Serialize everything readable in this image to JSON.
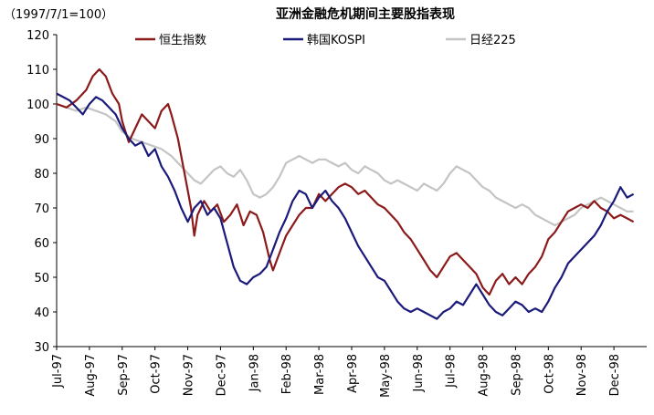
{
  "chart_data": {
    "type": "line",
    "title": "亚洲金融危机期间主要股指表现",
    "base_note": "（1997/7/1=100）",
    "xlabel": "",
    "ylabel": "",
    "ylim": [
      30,
      120
    ],
    "yticks": [
      30,
      40,
      50,
      60,
      70,
      80,
      90,
      100,
      110,
      120
    ],
    "xlim": [
      0,
      18
    ],
    "x_tick_labels": [
      "Jul-97",
      "Aug-97",
      "Sep-97",
      "Oct-97",
      "Nov-97",
      "Dec-97",
      "Jan-98",
      "Feb-98",
      "Mar-98",
      "Apr-98",
      "May-98",
      "Jun-98",
      "Jul-98",
      "Aug-98",
      "Sep-98",
      "Oct-98",
      "Nov-98",
      "Dec-98"
    ],
    "grid": false,
    "legend_position": "top",
    "series": [
      {
        "name": "恒生指数",
        "color": "#8b1a1a",
        "points": [
          [
            0,
            100
          ],
          [
            0.3,
            99
          ],
          [
            0.6,
            101
          ],
          [
            0.9,
            104
          ],
          [
            1.1,
            108
          ],
          [
            1.3,
            110
          ],
          [
            1.5,
            108
          ],
          [
            1.7,
            103
          ],
          [
            1.9,
            100
          ],
          [
            2.0,
            95
          ],
          [
            2.2,
            89
          ],
          [
            2.4,
            93
          ],
          [
            2.6,
            97
          ],
          [
            2.8,
            95
          ],
          [
            3.0,
            93
          ],
          [
            3.2,
            98
          ],
          [
            3.4,
            100
          ],
          [
            3.5,
            97
          ],
          [
            3.7,
            90
          ],
          [
            3.8,
            85
          ],
          [
            4.0,
            75
          ],
          [
            4.1,
            70
          ],
          [
            4.2,
            62
          ],
          [
            4.3,
            68
          ],
          [
            4.5,
            72
          ],
          [
            4.7,
            69
          ],
          [
            4.9,
            71
          ],
          [
            5.1,
            66
          ],
          [
            5.3,
            68
          ],
          [
            5.5,
            71
          ],
          [
            5.7,
            65
          ],
          [
            5.9,
            69
          ],
          [
            6.1,
            68
          ],
          [
            6.3,
            63
          ],
          [
            6.5,
            55
          ],
          [
            6.6,
            52
          ],
          [
            6.8,
            57
          ],
          [
            7.0,
            62
          ],
          [
            7.2,
            65
          ],
          [
            7.4,
            68
          ],
          [
            7.6,
            70
          ],
          [
            7.8,
            70
          ],
          [
            8.0,
            74
          ],
          [
            8.2,
            72
          ],
          [
            8.4,
            74
          ],
          [
            8.6,
            76
          ],
          [
            8.8,
            77
          ],
          [
            9.0,
            76
          ],
          [
            9.2,
            74
          ],
          [
            9.4,
            75
          ],
          [
            9.6,
            73
          ],
          [
            9.8,
            71
          ],
          [
            10.0,
            70
          ],
          [
            10.2,
            68
          ],
          [
            10.4,
            66
          ],
          [
            10.6,
            63
          ],
          [
            10.8,
            61
          ],
          [
            11.0,
            58
          ],
          [
            11.2,
            55
          ],
          [
            11.4,
            52
          ],
          [
            11.6,
            50
          ],
          [
            11.8,
            53
          ],
          [
            12.0,
            56
          ],
          [
            12.2,
            57
          ],
          [
            12.4,
            55
          ],
          [
            12.6,
            53
          ],
          [
            12.8,
            51
          ],
          [
            13.0,
            47
          ],
          [
            13.2,
            45
          ],
          [
            13.4,
            49
          ],
          [
            13.6,
            51
          ],
          [
            13.8,
            48
          ],
          [
            14.0,
            50
          ],
          [
            14.2,
            48
          ],
          [
            14.4,
            51
          ],
          [
            14.6,
            53
          ],
          [
            14.8,
            56
          ],
          [
            15.0,
            61
          ],
          [
            15.2,
            63
          ],
          [
            15.4,
            66
          ],
          [
            15.6,
            69
          ],
          [
            15.8,
            70
          ],
          [
            16.0,
            71
          ],
          [
            16.2,
            70
          ],
          [
            16.4,
            72
          ],
          [
            16.6,
            70
          ],
          [
            16.8,
            69
          ],
          [
            17.0,
            67
          ],
          [
            17.2,
            68
          ],
          [
            17.4,
            67
          ],
          [
            17.6,
            66
          ]
        ]
      },
      {
        "name": "韩国KOSPI",
        "color": "#1a1a7a",
        "points": [
          [
            0,
            103
          ],
          [
            0.2,
            102
          ],
          [
            0.4,
            101
          ],
          [
            0.6,
            99
          ],
          [
            0.8,
            97
          ],
          [
            1.0,
            100
          ],
          [
            1.2,
            102
          ],
          [
            1.4,
            101
          ],
          [
            1.6,
            99
          ],
          [
            1.8,
            97
          ],
          [
            2.0,
            93
          ],
          [
            2.2,
            90
          ],
          [
            2.4,
            88
          ],
          [
            2.6,
            89
          ],
          [
            2.8,
            85
          ],
          [
            3.0,
            87
          ],
          [
            3.2,
            82
          ],
          [
            3.4,
            79
          ],
          [
            3.6,
            75
          ],
          [
            3.8,
            70
          ],
          [
            4.0,
            66
          ],
          [
            4.2,
            70
          ],
          [
            4.4,
            72
          ],
          [
            4.6,
            68
          ],
          [
            4.8,
            70
          ],
          [
            5.0,
            67
          ],
          [
            5.2,
            60
          ],
          [
            5.4,
            53
          ],
          [
            5.6,
            49
          ],
          [
            5.8,
            48
          ],
          [
            6.0,
            50
          ],
          [
            6.2,
            51
          ],
          [
            6.4,
            53
          ],
          [
            6.6,
            58
          ],
          [
            6.8,
            63
          ],
          [
            7.0,
            67
          ],
          [
            7.2,
            72
          ],
          [
            7.4,
            75
          ],
          [
            7.6,
            74
          ],
          [
            7.8,
            70
          ],
          [
            8.0,
            73
          ],
          [
            8.2,
            75
          ],
          [
            8.4,
            72
          ],
          [
            8.6,
            70
          ],
          [
            8.8,
            67
          ],
          [
            9.0,
            63
          ],
          [
            9.2,
            59
          ],
          [
            9.4,
            56
          ],
          [
            9.6,
            53
          ],
          [
            9.8,
            50
          ],
          [
            10.0,
            49
          ],
          [
            10.2,
            46
          ],
          [
            10.4,
            43
          ],
          [
            10.6,
            41
          ],
          [
            10.8,
            40
          ],
          [
            11.0,
            41
          ],
          [
            11.2,
            40
          ],
          [
            11.4,
            39
          ],
          [
            11.6,
            38
          ],
          [
            11.8,
            40
          ],
          [
            12.0,
            41
          ],
          [
            12.2,
            43
          ],
          [
            12.4,
            42
          ],
          [
            12.6,
            45
          ],
          [
            12.8,
            48
          ],
          [
            13.0,
            45
          ],
          [
            13.2,
            42
          ],
          [
            13.4,
            40
          ],
          [
            13.6,
            39
          ],
          [
            13.8,
            41
          ],
          [
            14.0,
            43
          ],
          [
            14.2,
            42
          ],
          [
            14.4,
            40
          ],
          [
            14.6,
            41
          ],
          [
            14.8,
            40
          ],
          [
            15.0,
            43
          ],
          [
            15.2,
            47
          ],
          [
            15.4,
            50
          ],
          [
            15.6,
            54
          ],
          [
            15.8,
            56
          ],
          [
            16.0,
            58
          ],
          [
            16.2,
            60
          ],
          [
            16.4,
            62
          ],
          [
            16.6,
            65
          ],
          [
            16.8,
            69
          ],
          [
            17.0,
            72
          ],
          [
            17.2,
            76
          ],
          [
            17.4,
            73
          ],
          [
            17.6,
            74
          ]
        ]
      },
      {
        "name": "日经225",
        "color": "#c4c4c4",
        "points": [
          [
            0,
            100
          ],
          [
            0.3,
            99
          ],
          [
            0.6,
            98
          ],
          [
            0.9,
            99
          ],
          [
            1.2,
            98
          ],
          [
            1.5,
            97
          ],
          [
            1.8,
            95
          ],
          [
            2.0,
            92
          ],
          [
            2.3,
            90
          ],
          [
            2.6,
            89
          ],
          [
            2.9,
            88
          ],
          [
            3.2,
            87
          ],
          [
            3.5,
            85
          ],
          [
            3.8,
            82
          ],
          [
            4.0,
            80
          ],
          [
            4.2,
            78
          ],
          [
            4.4,
            77
          ],
          [
            4.6,
            79
          ],
          [
            4.8,
            81
          ],
          [
            5.0,
            82
          ],
          [
            5.2,
            80
          ],
          [
            5.4,
            79
          ],
          [
            5.6,
            81
          ],
          [
            5.8,
            78
          ],
          [
            6.0,
            74
          ],
          [
            6.2,
            73
          ],
          [
            6.4,
            74
          ],
          [
            6.6,
            76
          ],
          [
            6.8,
            79
          ],
          [
            7.0,
            83
          ],
          [
            7.2,
            84
          ],
          [
            7.4,
            85
          ],
          [
            7.6,
            84
          ],
          [
            7.8,
            83
          ],
          [
            8.0,
            84
          ],
          [
            8.2,
            84
          ],
          [
            8.4,
            83
          ],
          [
            8.6,
            82
          ],
          [
            8.8,
            83
          ],
          [
            9.0,
            81
          ],
          [
            9.2,
            80
          ],
          [
            9.4,
            82
          ],
          [
            9.6,
            81
          ],
          [
            9.8,
            80
          ],
          [
            10.0,
            78
          ],
          [
            10.2,
            77
          ],
          [
            10.4,
            78
          ],
          [
            10.6,
            77
          ],
          [
            10.8,
            76
          ],
          [
            11.0,
            75
          ],
          [
            11.2,
            77
          ],
          [
            11.4,
            76
          ],
          [
            11.6,
            75
          ],
          [
            11.8,
            77
          ],
          [
            12.0,
            80
          ],
          [
            12.2,
            82
          ],
          [
            12.4,
            81
          ],
          [
            12.6,
            80
          ],
          [
            12.8,
            78
          ],
          [
            13.0,
            76
          ],
          [
            13.2,
            75
          ],
          [
            13.4,
            73
          ],
          [
            13.6,
            72
          ],
          [
            13.8,
            71
          ],
          [
            14.0,
            70
          ],
          [
            14.2,
            71
          ],
          [
            14.4,
            70
          ],
          [
            14.6,
            68
          ],
          [
            14.8,
            67
          ],
          [
            15.0,
            66
          ],
          [
            15.2,
            65
          ],
          [
            15.4,
            66
          ],
          [
            15.6,
            67
          ],
          [
            15.8,
            68
          ],
          [
            16.0,
            70
          ],
          [
            16.2,
            71
          ],
          [
            16.4,
            72
          ],
          [
            16.6,
            73
          ],
          [
            16.8,
            72
          ],
          [
            17.0,
            71
          ],
          [
            17.2,
            70
          ],
          [
            17.4,
            69
          ],
          [
            17.6,
            69
          ]
        ]
      }
    ]
  }
}
